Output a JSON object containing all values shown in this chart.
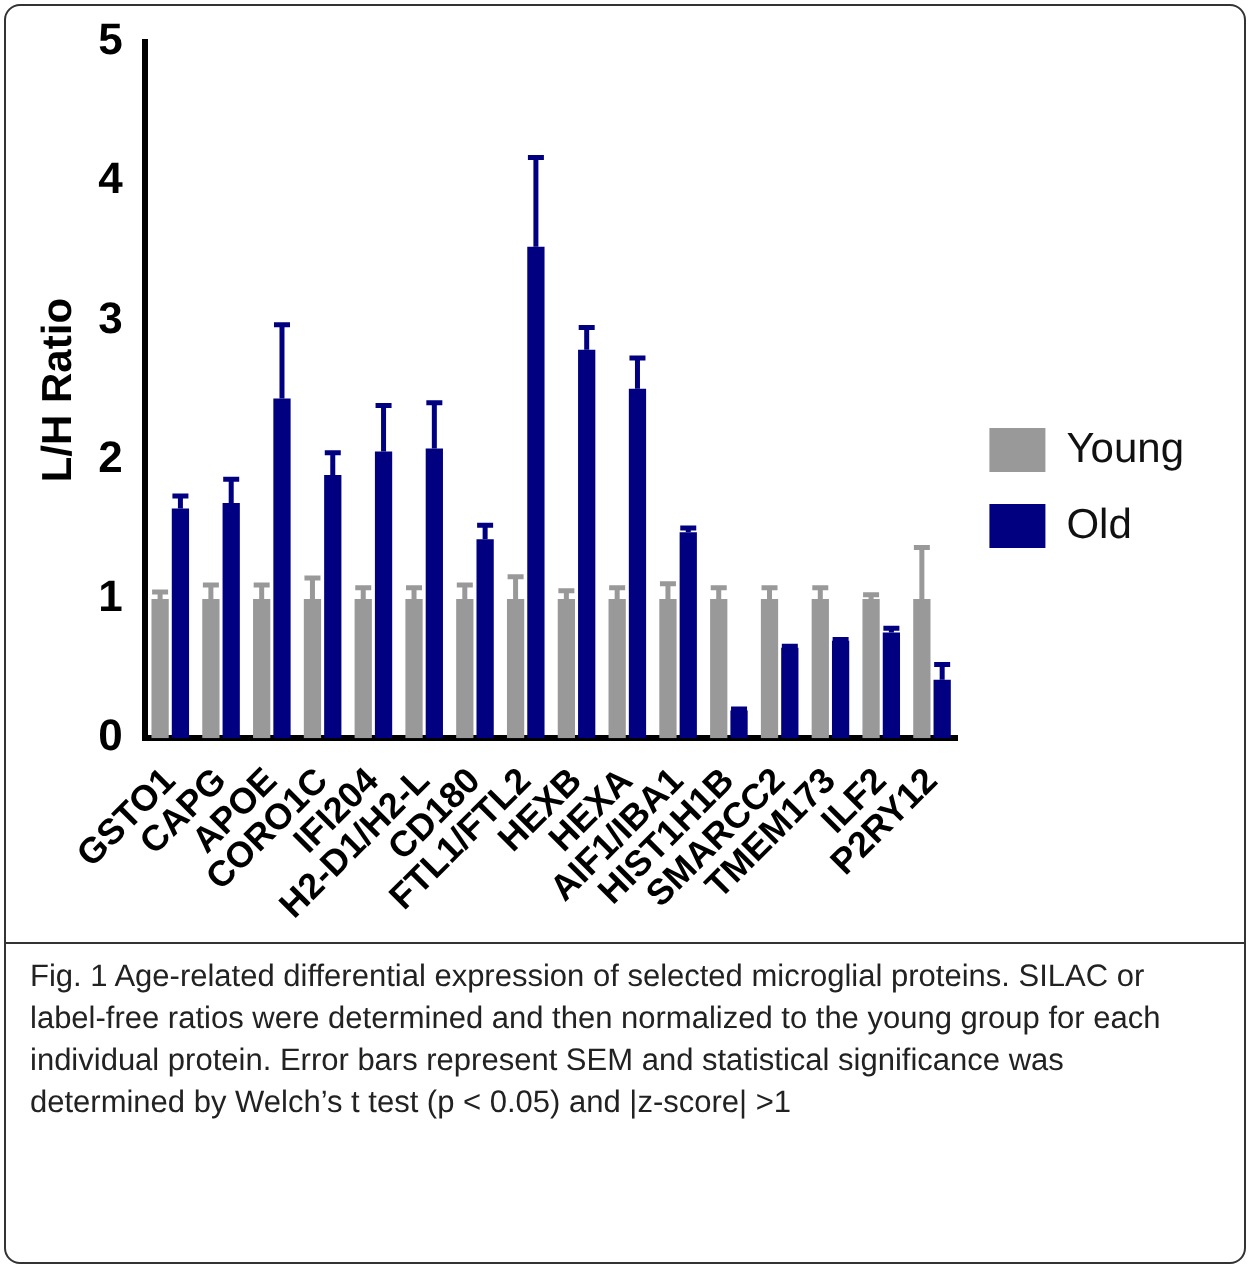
{
  "chart_data": {
    "type": "bar",
    "ylabel": "L/H Ratio",
    "categories": [
      "GSTO1",
      "CAPG",
      "APOE",
      "CORO1C",
      "IFI204",
      "H2-D1/H2-L",
      "CD180",
      "FTL1/FTL2",
      "HEXB",
      "HEXA",
      "AIF1/IBA1",
      "HIST1H1B",
      "SMARCC2",
      "TMEM173",
      "ILF2",
      "P2RY12"
    ],
    "series": [
      {
        "name": "Young",
        "color": "#999999",
        "values": [
          1,
          1,
          1,
          1,
          1,
          1,
          1,
          1,
          1,
          1,
          1,
          1,
          1,
          1,
          1,
          1
        ],
        "errors": [
          [
            1,
            1.05
          ],
          [
            1,
            1.1
          ],
          [
            1,
            1.1
          ],
          [
            1,
            1.15
          ],
          [
            1,
            1.08
          ],
          [
            1,
            1.08
          ],
          [
            1,
            1.1
          ],
          [
            1,
            1.16
          ],
          [
            1,
            1.06
          ],
          [
            1,
            1.08
          ],
          [
            1,
            1.11
          ],
          [
            1,
            1.08
          ],
          [
            1,
            1.08
          ],
          [
            1,
            1.08
          ],
          [
            1,
            1.03
          ],
          [
            1,
            1.37
          ]
        ]
      },
      {
        "name": "Old",
        "color": "#000080",
        "values": [
          1.65,
          1.69,
          2.44,
          1.89,
          2.06,
          2.08,
          1.43,
          3.53,
          2.79,
          2.51,
          1.48,
          0.2,
          0.65,
          0.7,
          0.76,
          0.42
        ],
        "errors": [
          [
            1.65,
            1.74
          ],
          [
            1.69,
            1.86
          ],
          [
            2.44,
            2.97
          ],
          [
            1.89,
            2.05
          ],
          [
            2.06,
            2.39
          ],
          [
            2.08,
            2.41
          ],
          [
            1.43,
            1.53
          ],
          [
            3.53,
            4.17
          ],
          [
            2.79,
            2.95
          ],
          [
            2.51,
            2.73
          ],
          [
            1.48,
            1.51
          ],
          [
            0.2,
            0.21
          ],
          [
            0.65,
            0.66
          ],
          [
            0.7,
            0.71
          ],
          [
            0.76,
            0.79
          ],
          [
            0.42,
            0.53
          ]
        ]
      }
    ],
    "ylim": [
      0,
      5
    ],
    "yticks": [
      0,
      1,
      2,
      3,
      4,
      5
    ],
    "grid": false,
    "legend": "right",
    "annotations": [
      "Fig. 1 Age-related differential expression of selected microglial proteins. SILAC or label-free ratios were determined and then normalized to the young group for each individual protein. Error bars represent SEM and statistical significance was determined by Welch’s t test (p < 0.05) and |z-score| >1"
    ]
  }
}
